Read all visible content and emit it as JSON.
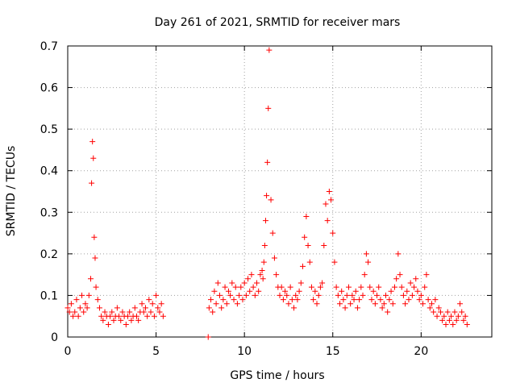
{
  "chart_data": {
    "type": "scatter",
    "title": "Day 261 of 2021, SRMTID for receiver mars",
    "xlabel": "GPS time / hours",
    "ylabel": "SRMTID / TECUs",
    "xlim": [
      0,
      24
    ],
    "ylim": [
      0,
      0.7
    ],
    "grid": true,
    "marker": "plus",
    "color": "#ff0000",
    "xticks": [
      0,
      5,
      10,
      15,
      20
    ],
    "xtick_labels": [
      "0",
      "5",
      "10",
      "15",
      "20"
    ],
    "yticks": [
      0,
      0.1,
      0.2,
      0.3,
      0.4,
      0.5,
      0.6,
      0.7
    ],
    "ytick_labels": [
      "0",
      "0.1",
      "0.2",
      "0.3",
      "0.4",
      "0.5",
      "0.6",
      "0.7"
    ],
    "series": [
      {
        "name": "SRMTID",
        "x": [
          0.0,
          0.1,
          0.2,
          0.3,
          0.4,
          0.5,
          0.6,
          0.7,
          0.8,
          0.9,
          1.0,
          1.1,
          1.2,
          1.3,
          1.35,
          1.4,
          1.45,
          1.5,
          1.55,
          1.6,
          1.7,
          1.8,
          1.9,
          2.0,
          2.1,
          2.2,
          2.3,
          2.4,
          2.5,
          2.6,
          2.7,
          2.8,
          2.9,
          3.0,
          3.1,
          3.2,
          3.3,
          3.4,
          3.5,
          3.6,
          3.7,
          3.8,
          3.9,
          4.0,
          4.1,
          4.2,
          4.3,
          4.4,
          4.5,
          4.6,
          4.7,
          4.8,
          4.9,
          5.0,
          5.1,
          5.2,
          5.3,
          5.4,
          7.95,
          8.0,
          8.1,
          8.2,
          8.3,
          8.4,
          8.5,
          8.6,
          8.7,
          8.8,
          8.9,
          9.0,
          9.1,
          9.2,
          9.3,
          9.4,
          9.5,
          9.6,
          9.7,
          9.8,
          9.9,
          10.0,
          10.1,
          10.2,
          10.3,
          10.4,
          10.5,
          10.6,
          10.7,
          10.8,
          10.9,
          11.0,
          11.05,
          11.1,
          11.15,
          11.2,
          11.25,
          11.3,
          11.35,
          11.4,
          11.5,
          11.6,
          11.7,
          11.8,
          11.9,
          12.0,
          12.1,
          12.2,
          12.3,
          12.4,
          12.5,
          12.6,
          12.7,
          12.8,
          12.9,
          13.0,
          13.1,
          13.2,
          13.3,
          13.4,
          13.5,
          13.6,
          13.7,
          13.8,
          13.9,
          14.0,
          14.1,
          14.2,
          14.3,
          14.4,
          14.5,
          14.6,
          14.7,
          14.8,
          14.9,
          15.0,
          15.1,
          15.2,
          15.3,
          15.4,
          15.5,
          15.6,
          15.7,
          15.8,
          15.9,
          16.0,
          16.1,
          16.2,
          16.3,
          16.4,
          16.5,
          16.6,
          16.7,
          16.8,
          16.9,
          17.0,
          17.1,
          17.2,
          17.3,
          17.4,
          17.5,
          17.6,
          17.7,
          17.8,
          17.9,
          18.0,
          18.1,
          18.2,
          18.3,
          18.4,
          18.5,
          18.6,
          18.7,
          18.8,
          18.9,
          19.0,
          19.1,
          19.2,
          19.3,
          19.4,
          19.5,
          19.6,
          19.7,
          19.8,
          19.9,
          20.0,
          20.1,
          20.2,
          20.3,
          20.4,
          20.5,
          20.6,
          20.7,
          20.8,
          20.9,
          21.0,
          21.1,
          21.2,
          21.3,
          21.4,
          21.5,
          21.6,
          21.7,
          21.8,
          21.9,
          22.0,
          22.1,
          22.2,
          22.3,
          22.4,
          22.5,
          22.6
        ],
        "y": [
          0.07,
          0.06,
          0.08,
          0.05,
          0.06,
          0.09,
          0.05,
          0.07,
          0.1,
          0.06,
          0.08,
          0.07,
          0.1,
          0.14,
          0.37,
          0.47,
          0.43,
          0.24,
          0.19,
          0.12,
          0.09,
          0.07,
          0.05,
          0.04,
          0.06,
          0.05,
          0.03,
          0.05,
          0.06,
          0.04,
          0.05,
          0.07,
          0.05,
          0.04,
          0.06,
          0.05,
          0.03,
          0.05,
          0.06,
          0.04,
          0.05,
          0.07,
          0.05,
          0.04,
          0.06,
          0.08,
          0.06,
          0.07,
          0.05,
          0.09,
          0.06,
          0.08,
          0.05,
          0.1,
          0.07,
          0.06,
          0.08,
          0.05,
          0.0,
          0.07,
          0.09,
          0.06,
          0.11,
          0.08,
          0.13,
          0.1,
          0.07,
          0.09,
          0.12,
          0.08,
          0.11,
          0.1,
          0.13,
          0.09,
          0.12,
          0.08,
          0.1,
          0.12,
          0.09,
          0.13,
          0.1,
          0.14,
          0.11,
          0.15,
          0.12,
          0.1,
          0.13,
          0.11,
          0.15,
          0.16,
          0.14,
          0.18,
          0.22,
          0.28,
          0.34,
          0.42,
          0.55,
          0.69,
          0.33,
          0.25,
          0.19,
          0.15,
          0.12,
          0.1,
          0.12,
          0.09,
          0.11,
          0.1,
          0.08,
          0.12,
          0.09,
          0.07,
          0.1,
          0.09,
          0.11,
          0.13,
          0.17,
          0.24,
          0.29,
          0.22,
          0.18,
          0.12,
          0.09,
          0.11,
          0.08,
          0.1,
          0.12,
          0.13,
          0.22,
          0.32,
          0.28,
          0.35,
          0.33,
          0.25,
          0.18,
          0.12,
          0.1,
          0.08,
          0.11,
          0.09,
          0.07,
          0.1,
          0.12,
          0.08,
          0.1,
          0.09,
          0.11,
          0.07,
          0.09,
          0.12,
          0.1,
          0.15,
          0.2,
          0.18,
          0.12,
          0.09,
          0.11,
          0.08,
          0.1,
          0.12,
          0.09,
          0.07,
          0.08,
          0.1,
          0.06,
          0.09,
          0.11,
          0.08,
          0.12,
          0.14,
          0.2,
          0.15,
          0.12,
          0.1,
          0.08,
          0.11,
          0.09,
          0.13,
          0.1,
          0.12,
          0.14,
          0.11,
          0.09,
          0.1,
          0.08,
          0.12,
          0.15,
          0.09,
          0.07,
          0.08,
          0.06,
          0.09,
          0.05,
          0.07,
          0.06,
          0.04,
          0.05,
          0.03,
          0.06,
          0.04,
          0.05,
          0.03,
          0.06,
          0.04,
          0.05,
          0.08,
          0.06,
          0.04,
          0.05,
          0.03
        ]
      }
    ]
  }
}
